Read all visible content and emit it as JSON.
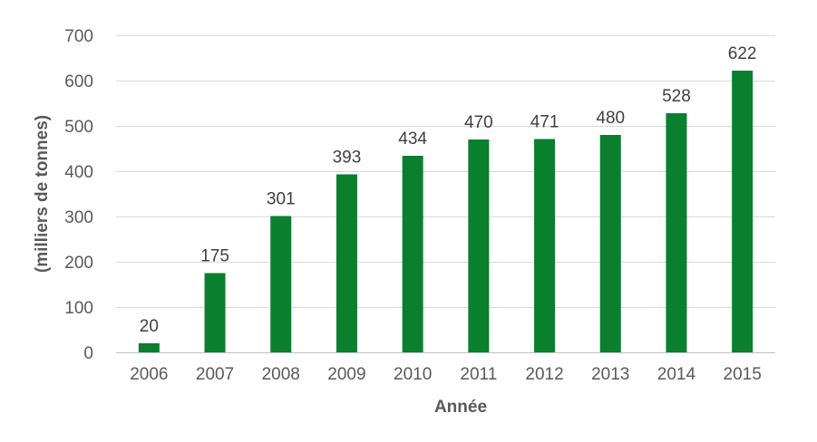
{
  "chart_data": {
    "type": "bar",
    "title": "",
    "xlabel": "Année",
    "ylabel": "(milliers de tonnes)",
    "categories": [
      "2006",
      "2007",
      "2008",
      "2009",
      "2010",
      "2011",
      "2012",
      "2013",
      "2014",
      "2015"
    ],
    "values": [
      20,
      175,
      301,
      393,
      434,
      470,
      471,
      480,
      528,
      622
    ],
    "data_labels": [
      "20",
      "175",
      "301",
      "393",
      "434",
      "470",
      "471",
      "480",
      "528",
      "622"
    ],
    "ylim": [
      0,
      700
    ],
    "yticks": [
      0,
      100,
      200,
      300,
      400,
      500,
      600,
      700
    ],
    "ytick_labels": [
      "0",
      "100",
      "200",
      "300",
      "400",
      "500",
      "600",
      "700"
    ],
    "grid": true,
    "legend": "none",
    "bar_color": "#0a7f2e"
  }
}
